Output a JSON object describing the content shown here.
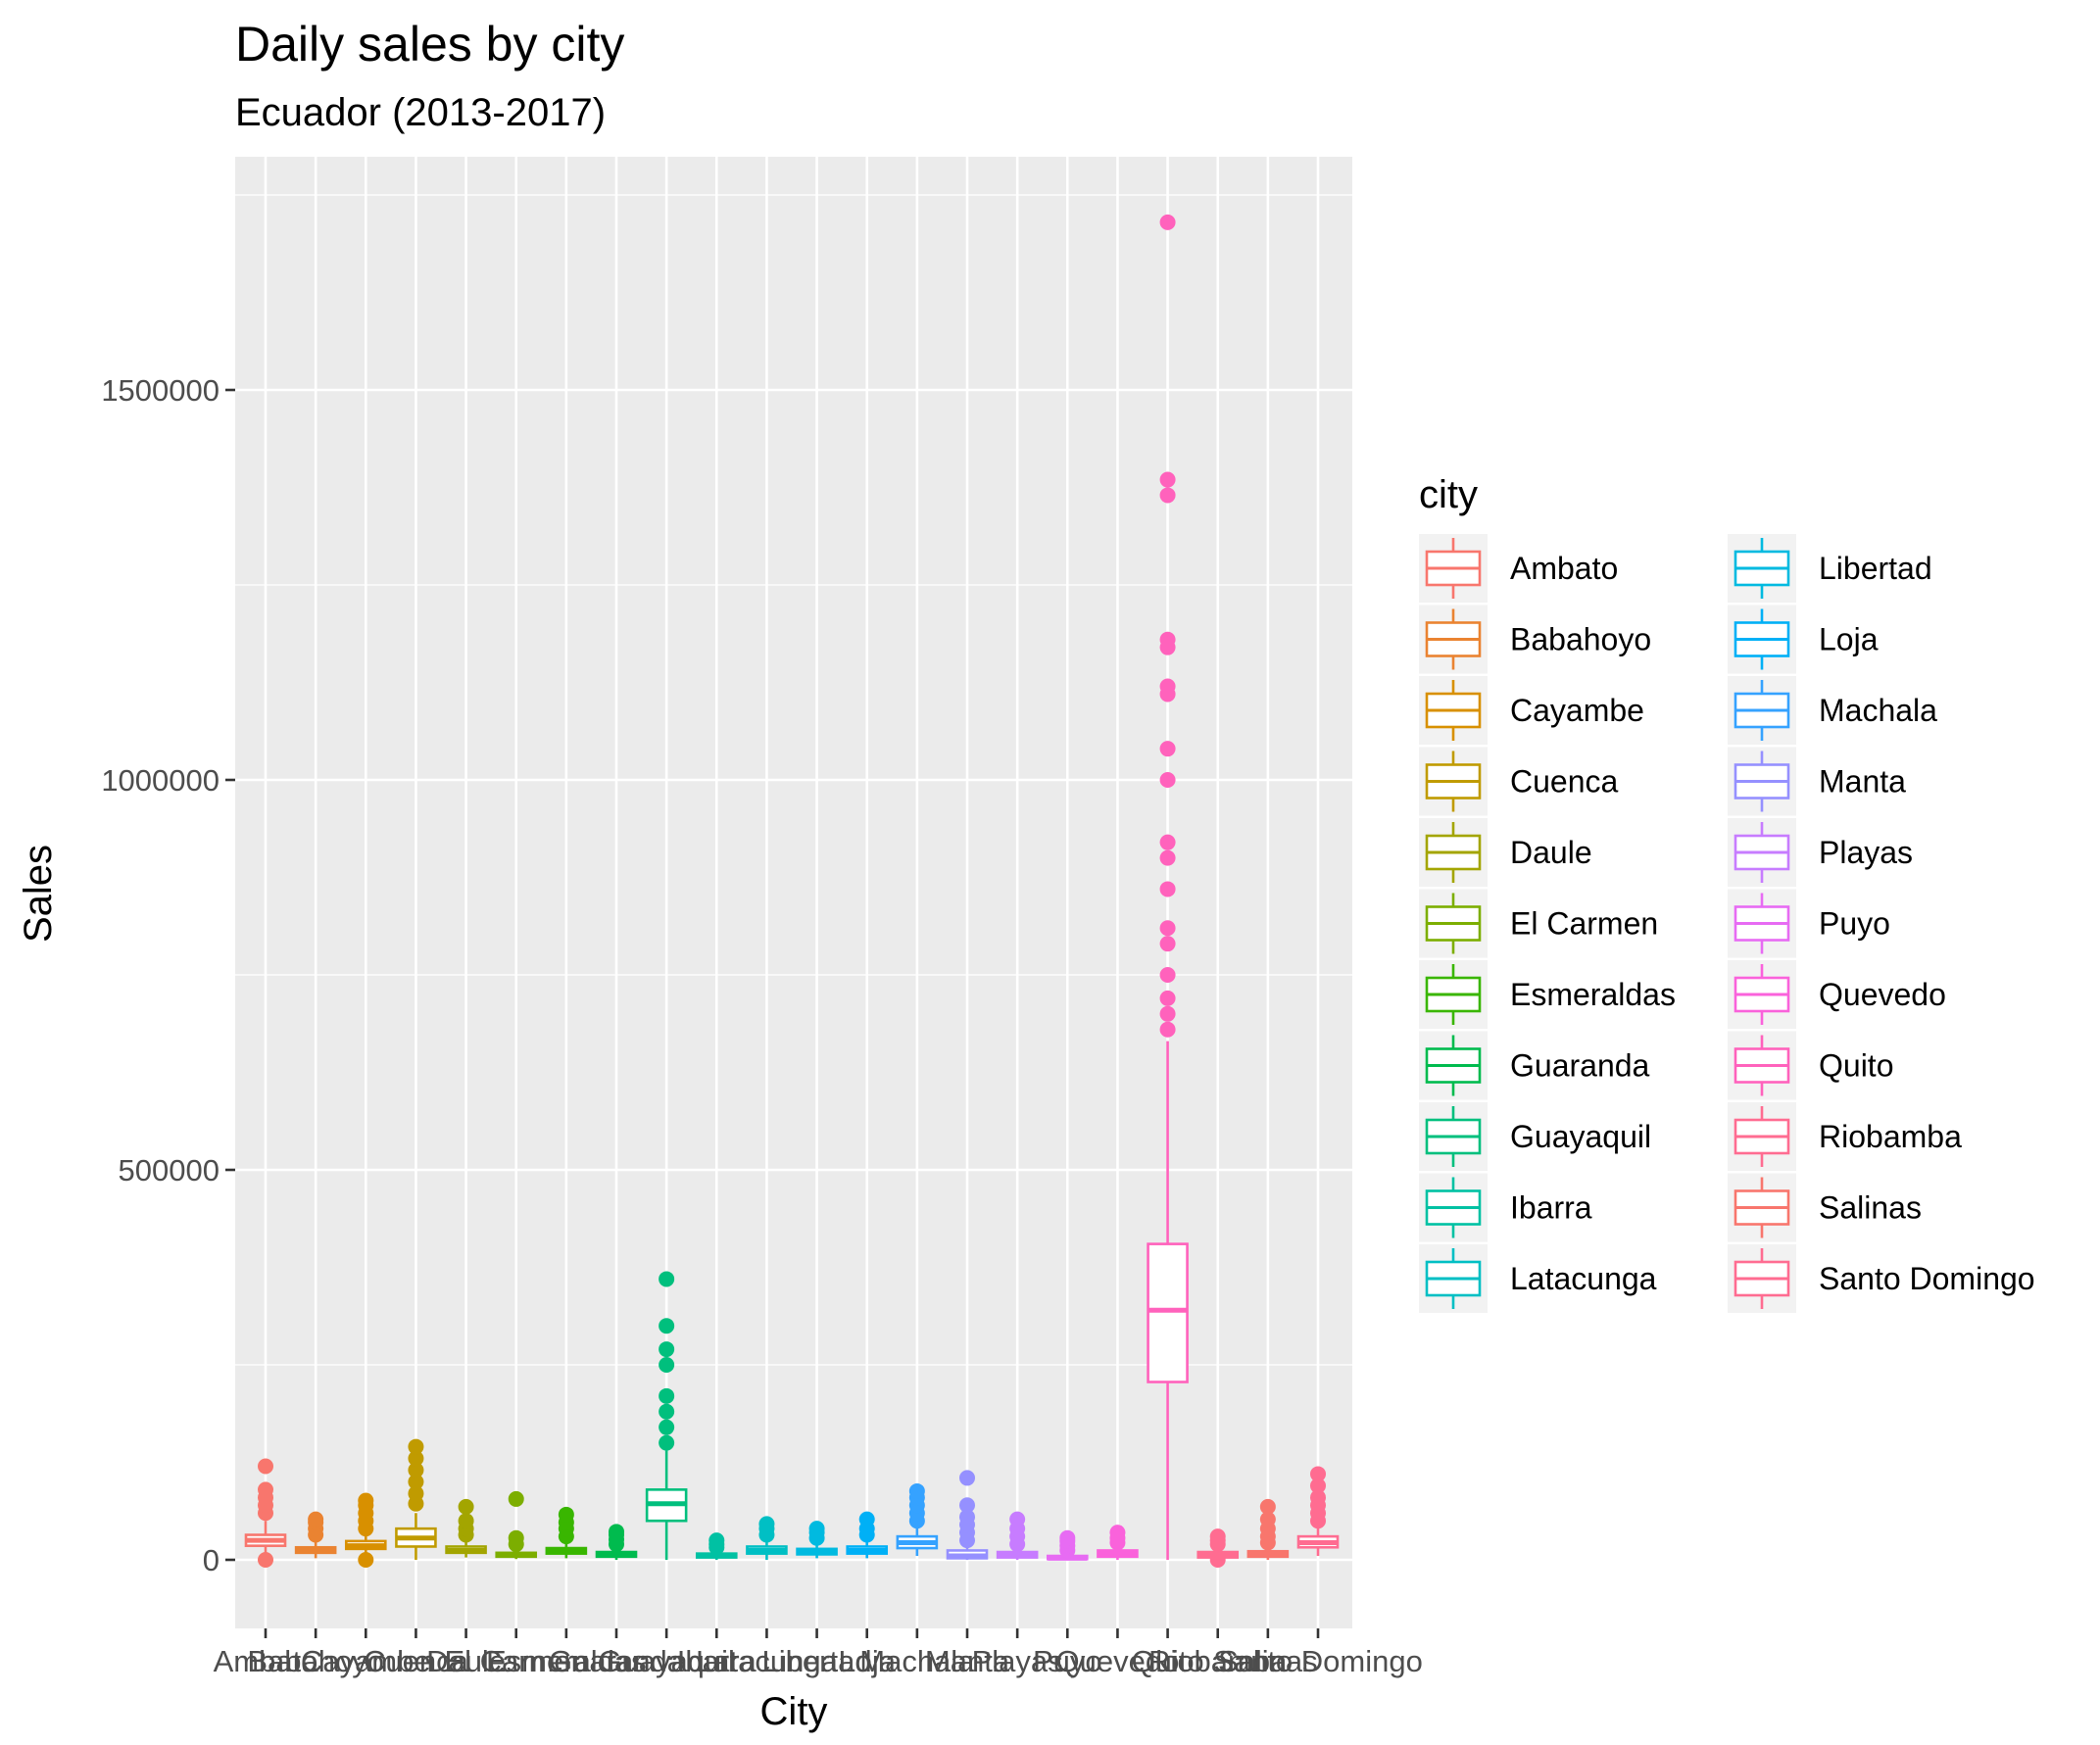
{
  "chart_data": {
    "type": "boxplot",
    "title": "Daily sales by city",
    "subtitle": "Ecuador (2013-2017)",
    "xlabel": "City",
    "ylabel": "Sales",
    "ylim": [
      -85000,
      1790000
    ],
    "yticks": [
      0,
      500000,
      1000000,
      1500000
    ],
    "ytick_labels": [
      "0",
      "500000",
      "1000000",
      "1500000"
    ],
    "grid": true,
    "legend": {
      "title": "city",
      "placement": "right",
      "columns": 2
    },
    "categories": [
      "Ambato",
      "Babahoyo",
      "Cayambe",
      "Cuenca",
      "Daule",
      "El Carmen",
      "Esmeraldas",
      "Guaranda",
      "Guayaquil",
      "Ibarra",
      "Latacunga",
      "Libertad",
      "Loja",
      "Machala",
      "Manta",
      "Playas",
      "Puyo",
      "Quevedo",
      "Quito",
      "Riobamba",
      "Salinas",
      "Santo Domingo"
    ],
    "colors": [
      "#F8766D",
      "#EA8331",
      "#D89000",
      "#C09B00",
      "#A3A500",
      "#7CAE00",
      "#39B600",
      "#00BB4E",
      "#00BF7D",
      "#00C1A3",
      "#00BFC4",
      "#00BAE0",
      "#00B0F6",
      "#35A2FF",
      "#9590FF",
      "#C77CFF",
      "#E76BF3",
      "#FA62DB",
      "#FF62BC",
      "#FF6C91",
      "#F8766D",
      "#FF6C91"
    ],
    "series": [
      {
        "name": "Ambato",
        "min": 0,
        "q1": 18000,
        "median": 25000,
        "q3": 32000,
        "max": 50000,
        "outliers": [
          60000,
          70000,
          80000,
          90000,
          120000,
          0
        ]
      },
      {
        "name": "Babahoyo",
        "min": 2000,
        "q1": 9000,
        "median": 12000,
        "q3": 16000,
        "max": 27000,
        "outliers": [
          32000,
          40000,
          48000,
          52000
        ]
      },
      {
        "name": "Cayambe",
        "min": 5000,
        "q1": 14000,
        "median": 18000,
        "q3": 24000,
        "max": 35000,
        "outliers": [
          40000,
          50000,
          60000,
          70000,
          76000,
          0
        ]
      },
      {
        "name": "Cuenca",
        "min": 0,
        "q1": 17000,
        "median": 28000,
        "q3": 40000,
        "max": 60000,
        "outliers": [
          72000,
          85000,
          100000,
          115000,
          130000,
          145000
        ]
      },
      {
        "name": "Daule",
        "min": 3000,
        "q1": 9000,
        "median": 12000,
        "q3": 17000,
        "max": 26000,
        "outliers": [
          32000,
          40000,
          50000,
          68000
        ]
      },
      {
        "name": "El Carmen",
        "min": 1000,
        "q1": 4000,
        "median": 6000,
        "q3": 9000,
        "max": 15000,
        "outliers": [
          20000,
          28000,
          78000
        ]
      },
      {
        "name": "Esmeraldas",
        "min": 2000,
        "q1": 8000,
        "median": 11000,
        "q3": 15000,
        "max": 24000,
        "outliers": [
          30000,
          40000,
          48000,
          58000
        ]
      },
      {
        "name": "Guaranda",
        "min": 0,
        "q1": 4000,
        "median": 7000,
        "q3": 10000,
        "max": 16000,
        "outliers": [
          20000,
          26000,
          32000,
          36000
        ]
      },
      {
        "name": "Guayaquil",
        "min": 0,
        "q1": 50000,
        "median": 72000,
        "q3": 90000,
        "max": 140000,
        "outliers": [
          150000,
          170000,
          190000,
          210000,
          250000,
          270000,
          300000,
          360000
        ]
      },
      {
        "name": "Ibarra",
        "min": 0,
        "q1": 3000,
        "median": 5000,
        "q3": 8000,
        "max": 12000,
        "outliers": [
          16000,
          20000,
          25000
        ]
      },
      {
        "name": "Latacunga",
        "min": 0,
        "q1": 8000,
        "median": 12000,
        "q3": 17000,
        "max": 26000,
        "outliers": [
          32000,
          40000,
          46000
        ]
      },
      {
        "name": "Libertad",
        "min": 2000,
        "q1": 7000,
        "median": 10000,
        "q3": 14000,
        "max": 22000,
        "outliers": [
          28000,
          35000,
          40000
        ]
      },
      {
        "name": "Loja",
        "min": 2000,
        "q1": 8000,
        "median": 12000,
        "q3": 17000,
        "max": 26000,
        "outliers": [
          32000,
          40000,
          52000
        ]
      },
      {
        "name": "Machala",
        "min": 5000,
        "q1": 15000,
        "median": 22000,
        "q3": 30000,
        "max": 45000,
        "outliers": [
          50000,
          60000,
          70000,
          80000,
          88000
        ]
      },
      {
        "name": "Manta",
        "min": 0,
        "q1": 2000,
        "median": 5000,
        "q3": 12000,
        "max": 20000,
        "outliers": [
          25000,
          35000,
          45000,
          55000,
          70000,
          105000
        ]
      },
      {
        "name": "Playas",
        "min": 0,
        "q1": 3000,
        "median": 6000,
        "q3": 10000,
        "max": 15000,
        "outliers": [
          20000,
          30000,
          40000,
          52000
        ]
      },
      {
        "name": "Puyo",
        "min": 0,
        "q1": 1000,
        "median": 2000,
        "q3": 5000,
        "max": 8000,
        "outliers": [
          12000,
          18000,
          24000,
          28000
        ]
      },
      {
        "name": "Quevedo",
        "min": 0,
        "q1": 4000,
        "median": 8000,
        "q3": 12000,
        "max": 18000,
        "outliers": [
          22000,
          28000,
          35000
        ]
      },
      {
        "name": "Quito",
        "min": 0,
        "q1": 228000,
        "median": 320000,
        "q3": 405000,
        "max": 665000,
        "outliers": [
          680000,
          700000,
          720000,
          750000,
          790000,
          810000,
          860000,
          900000,
          920000,
          1000000,
          1040000,
          1110000,
          1120000,
          1170000,
          1180000,
          1365000,
          1385000,
          1715000
        ]
      },
      {
        "name": "Riobamba",
        "min": 0,
        "q1": 3000,
        "median": 6000,
        "q3": 10000,
        "max": 15000,
        "outliers": [
          20000,
          25000,
          30000,
          0
        ]
      },
      {
        "name": "Salinas",
        "min": 0,
        "q1": 4000,
        "median": 7000,
        "q3": 11000,
        "max": 18000,
        "outliers": [
          22000,
          30000,
          40000,
          52000,
          68000
        ]
      },
      {
        "name": "Santo Domingo",
        "min": 5000,
        "q1": 16000,
        "median": 22000,
        "q3": 30000,
        "max": 42000,
        "outliers": [
          50000,
          60000,
          70000,
          80000,
          95000,
          110000
        ]
      }
    ]
  }
}
